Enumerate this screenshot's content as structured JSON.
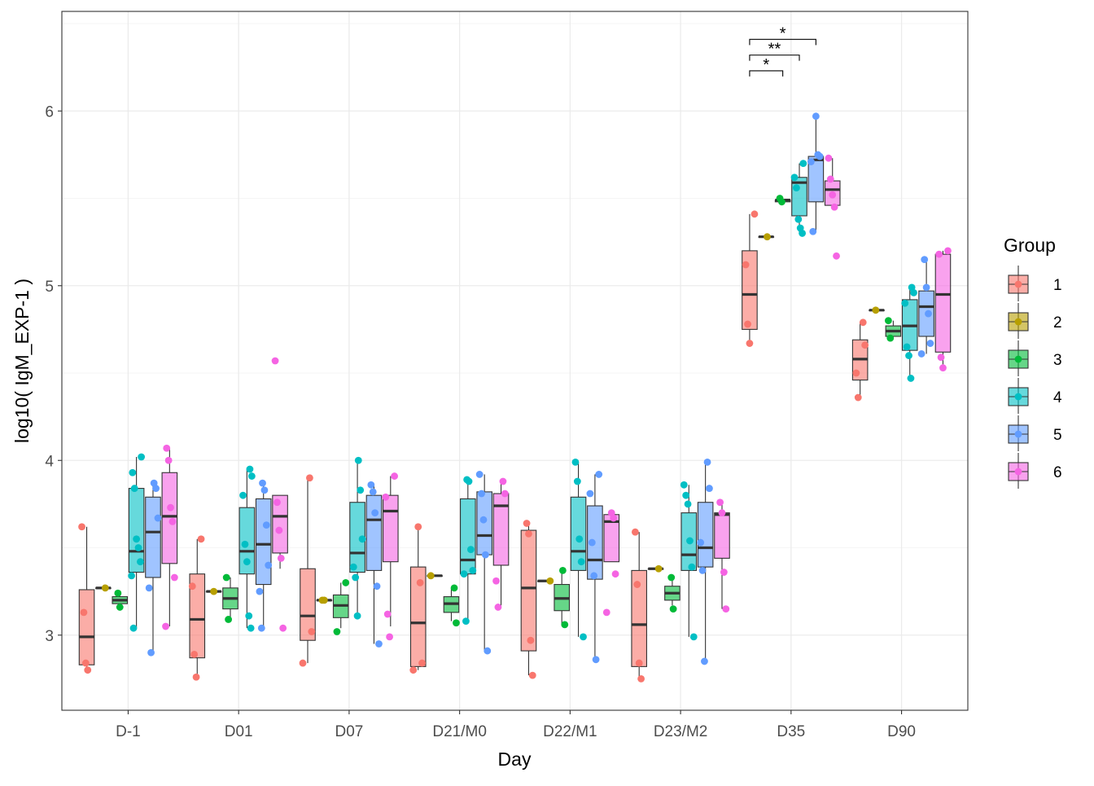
{
  "chart_data": {
    "type": "box",
    "xlabel": "Day",
    "ylabel": "log10( IgM_EXP-1 )",
    "ylim": [
      2.57,
      6.57
    ],
    "yticks": [
      3,
      4,
      5,
      6
    ],
    "grid": true,
    "legend": {
      "title": "Group",
      "placement": "right"
    },
    "categories": [
      "D-1",
      "D01",
      "D07",
      "D21/M0",
      "D22/M1",
      "D23/M2",
      "D35",
      "D90"
    ],
    "groups": [
      {
        "name": "1",
        "color": "#F8766D"
      },
      {
        "name": "2",
        "color": "#B79F00"
      },
      {
        "name": "3",
        "color": "#00BA38"
      },
      {
        "name": "4",
        "color": "#00BFC4"
      },
      {
        "name": "5",
        "color": "#619CFF"
      },
      {
        "name": "6",
        "color": "#F564E3"
      }
    ],
    "boxes": [
      {
        "day": 0,
        "group": 0,
        "lw": 2.8,
        "q1": 2.83,
        "med": 2.99,
        "q3": 3.26,
        "uw": 3.62,
        "points": [
          3.62,
          3.13,
          2.84,
          2.8
        ]
      },
      {
        "day": 0,
        "group": 1,
        "lw": 3.27,
        "q1": 3.27,
        "med": 3.27,
        "q3": 3.27,
        "uw": 3.27,
        "points": [
          3.27
        ]
      },
      {
        "day": 0,
        "group": 2,
        "lw": 3.17,
        "q1": 3.18,
        "med": 3.2,
        "q3": 3.22,
        "uw": 3.24,
        "points": [
          3.24,
          3.16
        ]
      },
      {
        "day": 0,
        "group": 3,
        "lw": 3.04,
        "q1": 3.36,
        "med": 3.48,
        "q3": 3.84,
        "uw": 4.02,
        "points": [
          4.02,
          3.93,
          3.84,
          3.55,
          3.5,
          3.42,
          3.34,
          3.04
        ]
      },
      {
        "day": 0,
        "group": 4,
        "lw": 2.9,
        "q1": 3.33,
        "med": 3.59,
        "q3": 3.79,
        "uw": 3.87,
        "points": [
          3.87,
          3.84,
          3.67,
          3.27,
          2.9
        ]
      },
      {
        "day": 0,
        "group": 5,
        "lw": 3.05,
        "q1": 3.41,
        "med": 3.68,
        "q3": 3.93,
        "uw": 4.07,
        "points": [
          4.07,
          4.0,
          3.73,
          3.65,
          3.33,
          3.05
        ]
      },
      {
        "day": 1,
        "group": 0,
        "lw": 2.76,
        "q1": 2.87,
        "med": 3.09,
        "q3": 3.35,
        "uw": 3.55,
        "points": [
          3.55,
          3.28,
          2.89,
          2.76
        ]
      },
      {
        "day": 1,
        "group": 1,
        "lw": 3.25,
        "q1": 3.25,
        "med": 3.25,
        "q3": 3.25,
        "uw": 3.25,
        "points": [
          3.25
        ]
      },
      {
        "day": 1,
        "group": 2,
        "lw": 3.09,
        "q1": 3.15,
        "med": 3.21,
        "q3": 3.27,
        "uw": 3.33,
        "points": [
          3.33,
          3.09
        ]
      },
      {
        "day": 1,
        "group": 3,
        "lw": 3.04,
        "q1": 3.35,
        "med": 3.48,
        "q3": 3.73,
        "uw": 3.95,
        "points": [
          3.95,
          3.91,
          3.8,
          3.52,
          3.42,
          3.11,
          3.04
        ]
      },
      {
        "day": 1,
        "group": 4,
        "lw": 3.04,
        "q1": 3.29,
        "med": 3.52,
        "q3": 3.78,
        "uw": 3.87,
        "points": [
          3.87,
          3.83,
          3.63,
          3.4,
          3.25,
          3.04
        ]
      },
      {
        "day": 1,
        "group": 5,
        "lw": 3.38,
        "q1": 3.47,
        "med": 3.68,
        "q3": 3.8,
        "uw": 3.8,
        "points": [
          4.57,
          3.76,
          3.6,
          3.44,
          3.04
        ]
      },
      {
        "day": 2,
        "group": 0,
        "lw": 2.84,
        "q1": 2.97,
        "med": 3.11,
        "q3": 3.38,
        "uw": 3.9,
        "points": [
          3.9,
          3.02,
          2.84
        ]
      },
      {
        "day": 2,
        "group": 1,
        "lw": 3.2,
        "q1": 3.2,
        "med": 3.2,
        "q3": 3.2,
        "uw": 3.2,
        "points": [
          3.2,
          3.2
        ]
      },
      {
        "day": 2,
        "group": 2,
        "lw": 3.04,
        "q1": 3.1,
        "med": 3.17,
        "q3": 3.23,
        "uw": 3.3,
        "points": [
          3.3,
          3.02
        ]
      },
      {
        "day": 2,
        "group": 3,
        "lw": 3.11,
        "q1": 3.36,
        "med": 3.47,
        "q3": 3.76,
        "uw": 4.0,
        "points": [
          4.0,
          3.83,
          3.55,
          3.39,
          3.33,
          3.11
        ]
      },
      {
        "day": 2,
        "group": 4,
        "lw": 2.95,
        "q1": 3.37,
        "med": 3.66,
        "q3": 3.8,
        "uw": 3.86,
        "points": [
          3.86,
          3.82,
          3.7,
          3.28,
          2.95
        ]
      },
      {
        "day": 2,
        "group": 5,
        "lw": 3.05,
        "q1": 3.42,
        "med": 3.71,
        "q3": 3.8,
        "uw": 3.91,
        "points": [
          3.91,
          3.79,
          3.12,
          2.99
        ]
      },
      {
        "day": 3,
        "group": 0,
        "lw": 2.8,
        "q1": 2.82,
        "med": 3.07,
        "q3": 3.39,
        "uw": 3.62,
        "points": [
          3.62,
          3.3,
          2.84,
          2.8
        ]
      },
      {
        "day": 3,
        "group": 1,
        "lw": 3.34,
        "q1": 3.34,
        "med": 3.34,
        "q3": 3.34,
        "uw": 3.34,
        "points": [
          3.34
        ]
      },
      {
        "day": 3,
        "group": 2,
        "lw": 3.08,
        "q1": 3.13,
        "med": 3.18,
        "q3": 3.22,
        "uw": 3.27,
        "points": [
          3.27,
          3.07
        ]
      },
      {
        "day": 3,
        "group": 3,
        "lw": 3.08,
        "q1": 3.35,
        "med": 3.43,
        "q3": 3.78,
        "uw": 3.89,
        "points": [
          3.89,
          3.88,
          3.49,
          3.37,
          3.35,
          3.08
        ]
      },
      {
        "day": 3,
        "group": 4,
        "lw": 2.91,
        "q1": 3.46,
        "med": 3.57,
        "q3": 3.82,
        "uw": 3.92,
        "points": [
          3.92,
          3.81,
          3.66,
          3.46,
          2.91
        ]
      },
      {
        "day": 3,
        "group": 5,
        "lw": 3.17,
        "q1": 3.4,
        "med": 3.74,
        "q3": 3.81,
        "uw": 3.88,
        "points": [
          3.88,
          3.81,
          3.31,
          3.16
        ]
      },
      {
        "day": 4,
        "group": 0,
        "lw": 2.77,
        "q1": 2.91,
        "med": 3.27,
        "q3": 3.6,
        "uw": 3.64,
        "points": [
          3.64,
          3.58,
          2.97,
          2.77
        ]
      },
      {
        "day": 4,
        "group": 1,
        "lw": 3.31,
        "q1": 3.31,
        "med": 3.31,
        "q3": 3.31,
        "uw": 3.31,
        "points": [
          3.31
        ]
      },
      {
        "day": 4,
        "group": 2,
        "lw": 3.06,
        "q1": 3.14,
        "med": 3.21,
        "q3": 3.29,
        "uw": 3.37,
        "points": [
          3.37,
          3.06
        ]
      },
      {
        "day": 4,
        "group": 3,
        "lw": 2.99,
        "q1": 3.37,
        "med": 3.48,
        "q3": 3.79,
        "uw": 3.99,
        "points": [
          3.99,
          3.88,
          3.55,
          3.42,
          2.99
        ]
      },
      {
        "day": 4,
        "group": 4,
        "lw": 2.86,
        "q1": 3.32,
        "med": 3.43,
        "q3": 3.74,
        "uw": 3.92,
        "points": [
          3.92,
          3.81,
          3.53,
          3.34,
          2.86
        ]
      },
      {
        "day": 4,
        "group": 5,
        "lw": 3.42,
        "q1": 3.42,
        "med": 3.65,
        "q3": 3.69,
        "uw": 3.7,
        "points": [
          3.7,
          3.67,
          3.35,
          3.13
        ]
      },
      {
        "day": 5,
        "group": 0,
        "lw": 2.75,
        "q1": 2.82,
        "med": 3.06,
        "q3": 3.37,
        "uw": 3.59,
        "points": [
          3.59,
          3.29,
          2.84,
          2.75
        ]
      },
      {
        "day": 5,
        "group": 1,
        "lw": 3.38,
        "q1": 3.38,
        "med": 3.38,
        "q3": 3.38,
        "uw": 3.38,
        "points": [
          3.38
        ]
      },
      {
        "day": 5,
        "group": 2,
        "lw": 3.17,
        "q1": 3.2,
        "med": 3.24,
        "q3": 3.28,
        "uw": 3.33,
        "points": [
          3.33,
          3.15
        ]
      },
      {
        "day": 5,
        "group": 3,
        "lw": 2.99,
        "q1": 3.37,
        "med": 3.46,
        "q3": 3.7,
        "uw": 3.86,
        "points": [
          3.86,
          3.8,
          3.75,
          3.54,
          3.39,
          2.99
        ]
      },
      {
        "day": 5,
        "group": 4,
        "lw": 2.85,
        "q1": 3.39,
        "med": 3.5,
        "q3": 3.76,
        "uw": 3.99,
        "points": [
          3.99,
          3.84,
          3.53,
          3.37,
          2.85
        ]
      },
      {
        "day": 5,
        "group": 5,
        "lw": 3.15,
        "q1": 3.44,
        "med": 3.69,
        "q3": 3.7,
        "uw": 3.76,
        "points": [
          3.76,
          3.7,
          3.36,
          3.15
        ]
      },
      {
        "day": 6,
        "group": 0,
        "lw": 4.67,
        "q1": 4.75,
        "med": 4.95,
        "q3": 5.2,
        "uw": 5.41,
        "points": [
          5.41,
          5.12,
          4.78,
          4.67
        ]
      },
      {
        "day": 6,
        "group": 1,
        "lw": 5.28,
        "q1": 5.28,
        "med": 5.28,
        "q3": 5.28,
        "uw": 5.28,
        "points": [
          5.28
        ]
      },
      {
        "day": 6,
        "group": 2,
        "lw": 5.48,
        "q1": 5.48,
        "med": 5.49,
        "q3": 5.49,
        "uw": 5.5,
        "points": [
          5.5,
          5.48
        ]
      },
      {
        "day": 6,
        "group": 3,
        "lw": 5.3,
        "q1": 5.4,
        "med": 5.59,
        "q3": 5.62,
        "uw": 5.7,
        "points": [
          5.7,
          5.62,
          5.56,
          5.38,
          5.33,
          5.3
        ]
      },
      {
        "day": 6,
        "group": 4,
        "lw": 5.31,
        "q1": 5.48,
        "med": 5.72,
        "q3": 5.74,
        "uw": 5.97,
        "points": [
          5.97,
          5.75,
          5.74,
          5.71,
          5.31
        ]
      },
      {
        "day": 6,
        "group": 5,
        "lw": 5.45,
        "q1": 5.46,
        "med": 5.55,
        "q3": 5.6,
        "uw": 5.73,
        "points": [
          5.73,
          5.61,
          5.52,
          5.45,
          5.17
        ]
      },
      {
        "day": 7,
        "group": 0,
        "lw": 4.36,
        "q1": 4.46,
        "med": 4.58,
        "q3": 4.69,
        "uw": 4.79,
        "points": [
          4.79,
          4.66,
          4.5,
          4.36
        ]
      },
      {
        "day": 7,
        "group": 1,
        "lw": 4.86,
        "q1": 4.86,
        "med": 4.86,
        "q3": 4.86,
        "uw": 4.86,
        "points": [
          4.86
        ]
      },
      {
        "day": 7,
        "group": 2,
        "lw": 4.7,
        "q1": 4.71,
        "med": 4.74,
        "q3": 4.77,
        "uw": 4.8,
        "points": [
          4.8,
          4.7
        ]
      },
      {
        "day": 7,
        "group": 3,
        "lw": 4.47,
        "q1": 4.63,
        "med": 4.77,
        "q3": 4.92,
        "uw": 4.99,
        "points": [
          4.99,
          4.96,
          4.9,
          4.65,
          4.6,
          4.47
        ]
      },
      {
        "day": 7,
        "group": 4,
        "lw": 4.61,
        "q1": 4.71,
        "med": 4.88,
        "q3": 4.97,
        "uw": 5.15,
        "points": [
          5.15,
          4.99,
          4.84,
          4.67,
          4.61
        ]
      },
      {
        "day": 7,
        "group": 5,
        "lw": 4.53,
        "q1": 4.62,
        "med": 4.95,
        "q3": 5.18,
        "uw": 5.2,
        "points": [
          5.2,
          5.18,
          4.59,
          4.53
        ]
      }
    ],
    "significance": [
      {
        "day": 6,
        "from_group": 0,
        "to_group": 4,
        "label": "*",
        "y": 6.41
      },
      {
        "day": 6,
        "from_group": 0,
        "to_group": 3,
        "label": "**",
        "y": 6.32
      },
      {
        "day": 6,
        "from_group": 0,
        "to_group": 2,
        "label": "*",
        "y": 6.23
      }
    ]
  }
}
